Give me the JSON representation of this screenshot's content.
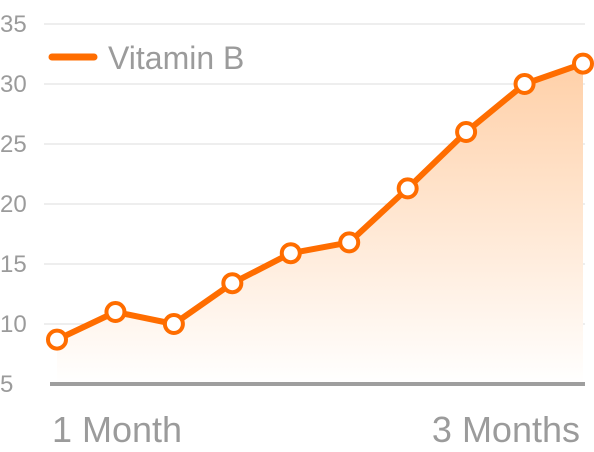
{
  "colors": {
    "series": "#ff6d00",
    "grid": "#dddddd",
    "axis": "#9e9e9e",
    "text": "#9b9b9b",
    "fill_top": "#ffd0a8",
    "fill_bottom": "#ffffff"
  },
  "chart_data": {
    "type": "area",
    "title": "",
    "xlabel": "",
    "ylabel": "",
    "ylim": [
      5,
      35
    ],
    "y_ticks": [
      5,
      10,
      15,
      20,
      25,
      30,
      35
    ],
    "x_tick_labels": [
      "1 Month",
      "3 Months"
    ],
    "grid": true,
    "legend_position": "top-left",
    "series": [
      {
        "name": "Vitamin B",
        "values": [
          8.7,
          11.0,
          10.0,
          13.4,
          15.9,
          16.8,
          21.3,
          26.0,
          30.0,
          31.7
        ]
      }
    ]
  }
}
